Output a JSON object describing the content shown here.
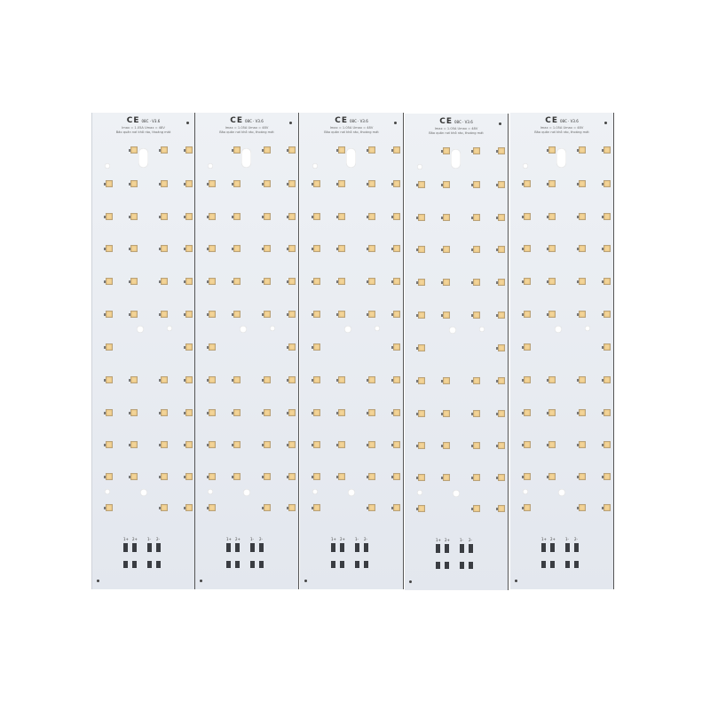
{
  "boards": [
    {
      "ce_mark": "CE",
      "version": "08C · V3.6",
      "spec_line": "Imax = 1.05A    Umax = 48V",
      "care_line": "Bảo quản nơi khô ráo, thoáng mát",
      "pad_labels": [
        "1+",
        "2+",
        "1-",
        "2-"
      ]
    },
    {
      "ce_mark": "CE",
      "version": "08C · V3.6",
      "spec_line": "Imax = 1.05A    Umax = 48V",
      "care_line": "Bảo quản nơi khô ráo, thoáng mát",
      "pad_labels": [
        "1+",
        "2+",
        "1-",
        "2-"
      ]
    },
    {
      "ce_mark": "CE",
      "version": "08C · V3.6",
      "spec_line": "Imax = 1.05A    Umax = 48V",
      "care_line": "Bảo quản nơi khô ráo, thoáng mát",
      "pad_labels": [
        "1+",
        "2+",
        "1-",
        "2-"
      ]
    },
    {
      "ce_mark": "CE",
      "version": "08C · V3.6",
      "spec_line": "Imax = 1.05A    Umax = 48V",
      "care_line": "Bảo quản nơi khô ráo, thoáng mát",
      "pad_labels": [
        "1+",
        "2+",
        "1-",
        "2-"
      ]
    },
    {
      "ce_mark": "CE",
      "version": "08C · V3.6",
      "spec_line": "Imax = 1.05A    Umax = 48V",
      "care_line": "Bảo quản nơi khô ráo, thoáng mát",
      "pad_labels": [
        "1+",
        "2+",
        "1-",
        "2-"
      ]
    }
  ],
  "colors": {
    "pcb": "#e8ebf0",
    "led": "#f3d59a",
    "pad": "#3a3d42"
  }
}
